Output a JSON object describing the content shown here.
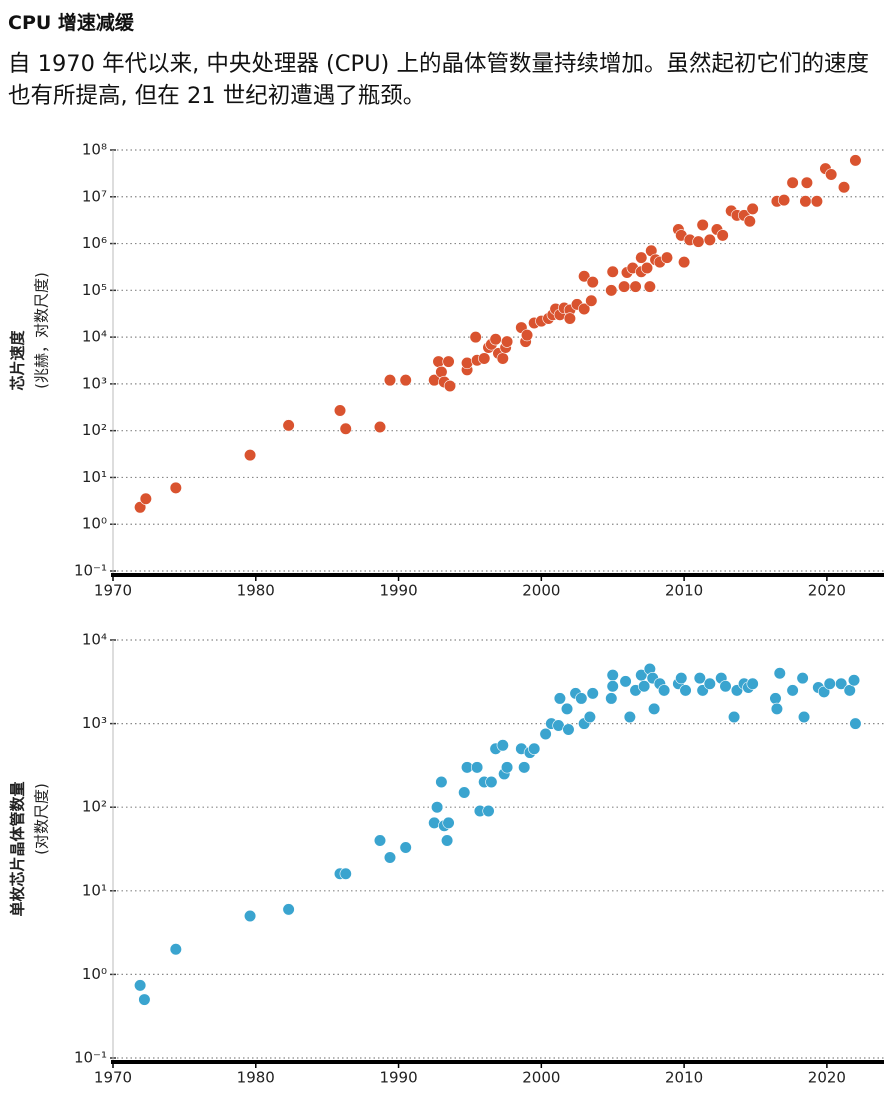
{
  "header": {
    "title": "CPU 增速减缓",
    "subtitle": "自 1970 年代以来, 中央处理器 (CPU) 上的晶体管数量持续增加。虽然起初它们的速度也有所提高, 但在 21 世纪初遭遇了瓶颈。"
  },
  "chart_data": [
    {
      "type": "scatter",
      "ylabel": "芯片速度",
      "ylabel_note": "(兆赫，对数尺度)",
      "color": "#d9532f",
      "log_y": true,
      "grid": true,
      "xlim": [
        1970,
        2024
      ],
      "xticks": [
        1970,
        1980,
        1990,
        2000,
        2010,
        2020
      ],
      "ylim": [
        0.1,
        100000000
      ],
      "yticks": [
        {
          "value": 0.1,
          "label": "10⁻¹"
        },
        {
          "value": 1,
          "label": "10⁰"
        },
        {
          "value": 10,
          "label": "10¹"
        },
        {
          "value": 100,
          "label": "10²"
        },
        {
          "value": 1000,
          "label": "10³"
        },
        {
          "value": 10000,
          "label": "10⁴"
        },
        {
          "value": 100000,
          "label": "10⁵"
        },
        {
          "value": 1000000,
          "label": "10⁶"
        },
        {
          "value": 10000000,
          "label": "10⁷"
        },
        {
          "value": 100000000,
          "label": "10⁸"
        }
      ],
      "x": [
        1971.9,
        1972.3,
        1974.4,
        1979.6,
        1982.3,
        1985.9,
        1986.3,
        1988.7,
        1989.4,
        1990.5,
        1992.5,
        1992.8,
        1993,
        1993.2,
        1993.6,
        1993.5,
        1994.8,
        1994.8,
        1995.5,
        1995.4,
        1996,
        1996.3,
        1996.5,
        1996.8,
        1997,
        1997.3,
        1997.5,
        1997.6,
        1998.6,
        1998.9,
        1999,
        1999.5,
        2000,
        2000.5,
        2000.8,
        2001,
        2001.3,
        2001.6,
        2002,
        2002,
        2002.5,
        2003,
        2003,
        2003.5,
        2003.6,
        2004.9,
        2005,
        2005.8,
        2006,
        2006.4,
        2006.6,
        2007,
        2007,
        2007.4,
        2007.6,
        2007.7,
        2008,
        2008.3,
        2008.8,
        2009.6,
        2009.8,
        2010,
        2010.4,
        2011,
        2011.3,
        2011.8,
        2012.3,
        2012.7,
        2013.3,
        2013.7,
        2014.2,
        2014.6,
        2014.8,
        2016.5,
        2017,
        2017.6,
        2018.5,
        2018.6,
        2019.3,
        2019.9,
        2020.3,
        2021.2,
        2022
      ],
      "values": [
        2.3,
        3.5,
        6,
        30,
        130,
        270,
        110,
        120,
        1200,
        1200,
        1200,
        3000,
        1800,
        1100,
        900,
        3000,
        2000,
        2800,
        3200,
        10000,
        3500,
        6000,
        7000,
        9000,
        4500,
        3500,
        6000,
        8000,
        16000,
        8000,
        11000,
        20000,
        22000,
        25000,
        30000,
        40000,
        30000,
        42000,
        38000,
        25000,
        50000,
        40000,
        200000,
        60000,
        150000,
        100000,
        250000,
        120000,
        240000,
        300000,
        120000,
        500000,
        250000,
        300000,
        120000,
        700000,
        450000,
        400000,
        500000,
        2000000,
        1500000,
        400000,
        1200000,
        1100000,
        2500000,
        1200000,
        2000000,
        1500000,
        5000000,
        4000000,
        4000000,
        3000000,
        5500000,
        8000000,
        8500000,
        20000000,
        8000000,
        20000000,
        8000000,
        40000000,
        30000000,
        16000000,
        60000000
      ]
    },
    {
      "type": "scatter",
      "ylabel": "单枚芯片晶体管数量",
      "ylabel_note": "(对数尺度)",
      "color": "#3aa4cf",
      "log_y": true,
      "grid": true,
      "xlim": [
        1970,
        2024
      ],
      "xticks": [
        1970,
        1980,
        1990,
        2000,
        2010,
        2020
      ],
      "ylim": [
        0.1,
        10000
      ],
      "yticks": [
        {
          "value": 0.1,
          "label": "10⁻¹"
        },
        {
          "value": 1,
          "label": "10⁰"
        },
        {
          "value": 10,
          "label": "10¹"
        },
        {
          "value": 100,
          "label": "10²"
        },
        {
          "value": 1000,
          "label": "10³"
        },
        {
          "value": 10000,
          "label": "10⁴"
        }
      ],
      "x": [
        1971.9,
        1972.2,
        1974.4,
        1979.6,
        1982.3,
        1985.9,
        1986.3,
        1988.7,
        1989.4,
        1990.5,
        1992.5,
        1992.7,
        1993,
        1993.2,
        1993.4,
        1993.5,
        1994.6,
        1994.8,
        1995.5,
        1995.7,
        1996,
        1996.3,
        1996.5,
        1996.8,
        1997.3,
        1997.4,
        1997.6,
        1998.6,
        1998.8,
        1999.2,
        1999.5,
        2000.3,
        2000.7,
        2001.2,
        2001.3,
        2001.8,
        2001.9,
        2002.4,
        2002.8,
        2003,
        2003.4,
        2003.6,
        2004.9,
        2005,
        2005,
        2005.9,
        2006.2,
        2006.6,
        2007,
        2007.2,
        2007.6,
        2007.8,
        2007.9,
        2008.3,
        2008.6,
        2009.6,
        2009.8,
        2010.1,
        2011.1,
        2011.3,
        2011.8,
        2012.6,
        2012.9,
        2013.5,
        2013.7,
        2014.2,
        2014.5,
        2014.8,
        2016.4,
        2016.5,
        2016.7,
        2017.6,
        2018.3,
        2018.4,
        2019.4,
        2019.8,
        2020.2,
        2021,
        2021.6,
        2021.9,
        2022
      ],
      "values": [
        0.74,
        0.5,
        2,
        5,
        6,
        16,
        16,
        40,
        25,
        33,
        65,
        100,
        200,
        60,
        40,
        65,
        150,
        300,
        300,
        90,
        200,
        90,
        200,
        500,
        550,
        250,
        300,
        500,
        300,
        450,
        500,
        750,
        1000,
        950,
        2000,
        1500,
        850,
        2300,
        2000,
        1000,
        1200,
        2300,
        2000,
        3800,
        2800,
        3200,
        1200,
        2500,
        3800,
        2800,
        4500,
        3500,
        1500,
        3000,
        2500,
        3000,
        3500,
        2500,
        3500,
        2500,
        3000,
        3500,
        2800,
        1200,
        2500,
        3000,
        2700,
        3000,
        2000,
        1500,
        4000,
        2500,
        3500,
        1200,
        2700,
        2400,
        3000,
        3000,
        2500,
        3300,
        1000
      ]
    }
  ]
}
